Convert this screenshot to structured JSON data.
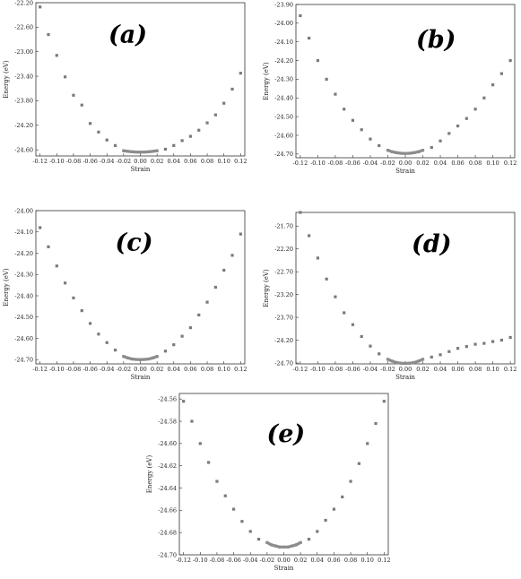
{
  "chart_data": [
    {
      "type": "scatter",
      "panel_label": "(a)",
      "xlabel": "Strain",
      "ylabel": "Energy (eV)",
      "xlim": [
        -0.125,
        0.125
      ],
      "ylim": [
        -24.7,
        -22.2
      ],
      "x_ticks": [
        -0.12,
        -0.1,
        -0.08,
        -0.06,
        -0.04,
        -0.02,
        0.0,
        0.02,
        0.04,
        0.06,
        0.08,
        0.1,
        0.12
      ],
      "x_tick_labels": [
        "-0.12",
        "-0.10",
        "-0.08",
        "-0.06",
        "-0.04",
        "-0.02",
        "0.00",
        "0.02",
        "0.04",
        "0.06",
        "0.08",
        "0.10",
        "0.12"
      ],
      "y_ticks": [
        -24.6,
        -24.2,
        -23.8,
        -23.4,
        -23.0,
        -22.6,
        -22.2
      ],
      "y_tick_labels": [
        "-24.60",
        "-24.20",
        "-23.80",
        "-23.40",
        "-23.00",
        "-22.60",
        "-22.20"
      ],
      "series": [
        {
          "x": [
            -0.12,
            -0.11,
            -0.1,
            -0.09,
            -0.08,
            -0.07,
            -0.06,
            -0.05,
            -0.04,
            -0.03,
            0.03,
            0.04,
            0.05,
            0.06,
            0.07,
            0.08,
            0.09,
            0.1,
            0.11,
            0.12
          ],
          "y": [
            -22.27,
            -22.72,
            -23.06,
            -23.41,
            -23.71,
            -23.87,
            -24.17,
            -24.31,
            -24.44,
            -24.53,
            -24.59,
            -24.53,
            -24.45,
            -24.38,
            -24.28,
            -24.16,
            -24.03,
            -23.84,
            -23.61,
            -23.35
          ]
        },
        {
          "x": [
            -0.02,
            -0.015,
            -0.01,
            -0.005,
            0.0,
            0.005,
            0.01,
            0.015,
            0.02
          ],
          "y": [
            -24.615,
            -24.625,
            -24.632,
            -24.636,
            -24.638,
            -24.636,
            -24.632,
            -24.625,
            -24.615
          ]
        }
      ]
    },
    {
      "type": "scatter",
      "panel_label": "(b)",
      "xlabel": "Strain",
      "ylabel": "Energy (eV)",
      "xlim": [
        -0.125,
        0.125
      ],
      "ylim": [
        -24.72,
        -23.9
      ],
      "x_ticks": [
        -0.12,
        -0.1,
        -0.08,
        -0.06,
        -0.04,
        -0.02,
        0.0,
        0.02,
        0.04,
        0.06,
        0.08,
        0.1,
        0.12
      ],
      "x_tick_labels": [
        "-0.12",
        "-0.10",
        "-0.08",
        "-0.06",
        "-0.04",
        "-0.02",
        "0.00",
        "0.02",
        "0.04",
        "0.06",
        "0.08",
        "0.10",
        "0.12"
      ],
      "y_ticks": [
        -24.7,
        -24.6,
        -24.5,
        -24.4,
        -24.3,
        -24.2,
        -24.1,
        -24.0,
        -23.9
      ],
      "y_tick_labels": [
        "-24.70",
        "-24.60",
        "-24.50",
        "-24.40",
        "-24.30",
        "-24.20",
        "-24.10",
        "-24.00",
        "-23.90"
      ],
      "series": [
        {
          "x": [
            -0.12,
            -0.11,
            -0.1,
            -0.09,
            -0.08,
            -0.07,
            -0.06,
            -0.05,
            -0.04,
            -0.03,
            0.03,
            0.04,
            0.05,
            0.06,
            0.07,
            0.08,
            0.09,
            0.1,
            0.11,
            0.12
          ],
          "y": [
            -23.96,
            -24.08,
            -24.2,
            -24.3,
            -24.38,
            -24.46,
            -24.52,
            -24.57,
            -24.62,
            -24.655,
            -24.665,
            -24.63,
            -24.59,
            -24.55,
            -24.51,
            -24.46,
            -24.4,
            -24.33,
            -24.27,
            -24.2
          ]
        },
        {
          "x": [
            -0.02,
            -0.015,
            -0.01,
            -0.005,
            0.0,
            0.005,
            0.01,
            0.015,
            0.02
          ],
          "y": [
            -24.68,
            -24.688,
            -24.693,
            -24.696,
            -24.697,
            -24.696,
            -24.693,
            -24.688,
            -24.68
          ]
        }
      ]
    },
    {
      "type": "scatter",
      "panel_label": "(c)",
      "xlabel": "Strain",
      "ylabel": "Energy (eV)",
      "xlim": [
        -0.125,
        0.125
      ],
      "ylim": [
        -24.72,
        -24.0
      ],
      "x_ticks": [
        -0.12,
        -0.1,
        -0.08,
        -0.06,
        -0.04,
        -0.02,
        0.0,
        0.02,
        0.04,
        0.06,
        0.08,
        0.1,
        0.12
      ],
      "x_tick_labels": [
        "-0.12",
        "-0.10",
        "-0.08",
        "-0.06",
        "-0.04",
        "-0.02",
        "0.00",
        "0.02",
        "0.04",
        "0.06",
        "0.08",
        "0.10",
        "0.12"
      ],
      "y_ticks": [
        -24.7,
        -24.6,
        -24.5,
        -24.4,
        -24.3,
        -24.2,
        -24.1,
        -24.0
      ],
      "y_tick_labels": [
        "-24.70",
        "-24.60",
        "-24.50",
        "-24.40",
        "-24.30",
        "-24.20",
        "-24.10",
        "-24.00"
      ],
      "series": [
        {
          "x": [
            -0.12,
            -0.11,
            -0.1,
            -0.09,
            -0.08,
            -0.07,
            -0.06,
            -0.05,
            -0.04,
            -0.03,
            0.03,
            0.04,
            0.05,
            0.06,
            0.07,
            0.08,
            0.09,
            0.1,
            0.11,
            0.12
          ],
          "y": [
            -24.08,
            -24.17,
            -24.26,
            -24.34,
            -24.41,
            -24.47,
            -24.53,
            -24.58,
            -24.62,
            -24.655,
            -24.66,
            -24.63,
            -24.59,
            -24.55,
            -24.49,
            -24.43,
            -24.36,
            -24.28,
            -24.21,
            -24.11
          ]
        },
        {
          "x": [
            -0.02,
            -0.015,
            -0.01,
            -0.005,
            0.0,
            0.005,
            0.01,
            0.015,
            0.02
          ],
          "y": [
            -24.685,
            -24.692,
            -24.697,
            -24.699,
            -24.7,
            -24.699,
            -24.697,
            -24.692,
            -24.685
          ]
        }
      ]
    },
    {
      "type": "scatter",
      "panel_label": "(d)",
      "xlabel": "Strain",
      "ylabel": "Energy (eV)",
      "xlim": [
        -0.125,
        0.125
      ],
      "ylim": [
        -24.72,
        -21.4
      ],
      "x_ticks": [
        -0.12,
        -0.1,
        -0.08,
        -0.06,
        -0.04,
        -0.02,
        0.0,
        0.02,
        0.04,
        0.06,
        0.08,
        0.1,
        0.12
      ],
      "x_tick_labels": [
        "-0.12",
        "-0.10",
        "-0.08",
        "-0.06",
        "-0.04",
        "-0.02",
        "0.00",
        "0.02",
        "0.04",
        "0.06",
        "0.08",
        "0.10",
        "0.12"
      ],
      "y_ticks": [
        -24.7,
        -24.2,
        -23.7,
        -23.2,
        -22.7,
        -22.2,
        -21.7
      ],
      "y_tick_labels": [
        "-24.70",
        "-24.20",
        "-23.70",
        "-23.20",
        "-22.70",
        "-22.20",
        "-21.70"
      ],
      "series": [
        {
          "x": [
            -0.12,
            -0.11,
            -0.1,
            -0.09,
            -0.08,
            -0.07,
            -0.06,
            -0.05,
            -0.04,
            -0.03,
            0.03,
            0.04,
            0.05,
            0.06,
            0.07,
            0.08,
            0.09,
            0.1,
            0.11,
            0.12
          ],
          "y": [
            -21.4,
            -21.91,
            -22.4,
            -22.86,
            -23.25,
            -23.6,
            -23.86,
            -24.12,
            -24.33,
            -24.5,
            -24.57,
            -24.52,
            -24.45,
            -24.38,
            -24.34,
            -24.29,
            -24.27,
            -24.23,
            -24.2,
            -24.14
          ]
        },
        {
          "x": [
            -0.02,
            -0.015,
            -0.01,
            -0.005,
            0.0,
            0.005,
            0.01,
            0.015,
            0.02
          ],
          "y": [
            -24.62,
            -24.66,
            -24.69,
            -24.705,
            -24.71,
            -24.705,
            -24.69,
            -24.66,
            -24.62
          ]
        }
      ]
    },
    {
      "type": "scatter",
      "panel_label": "(e)",
      "xlabel": "Strain",
      "ylabel": "Energy (eV)",
      "xlim": [
        -0.125,
        0.125
      ],
      "ylim": [
        -24.7,
        -24.555
      ],
      "x_ticks": [
        -0.12,
        -0.1,
        -0.08,
        -0.06,
        -0.04,
        -0.02,
        0.0,
        0.02,
        0.04,
        0.06,
        0.08,
        0.1,
        0.12
      ],
      "x_tick_labels": [
        "-0.12",
        "-0.10",
        "-0.08",
        "-0.06",
        "-0.04",
        "-0.02",
        "0.00",
        "0.02",
        "0.04",
        "0.06",
        "0.08",
        "0.10",
        "0.12"
      ],
      "y_ticks": [
        -24.7,
        -24.68,
        -24.66,
        -24.64,
        -24.62,
        -24.6,
        -24.58,
        -24.56
      ],
      "y_tick_labels": [
        "-24.70",
        "-24.68",
        "-24.66",
        "-24.64",
        "-24.62",
        "-24.60",
        "-24.58",
        "-24.56"
      ],
      "series": [
        {
          "x": [
            -0.12,
            -0.11,
            -0.1,
            -0.09,
            -0.08,
            -0.07,
            -0.06,
            -0.05,
            -0.04,
            -0.03,
            0.03,
            0.04,
            0.05,
            0.06,
            0.07,
            0.08,
            0.09,
            0.1,
            0.11,
            0.12
          ],
          "y": [
            -24.562,
            -24.58,
            -24.6,
            -24.617,
            -24.634,
            -24.647,
            -24.659,
            -24.67,
            -24.679,
            -24.686,
            -24.686,
            -24.679,
            -24.669,
            -24.659,
            -24.648,
            -24.634,
            -24.618,
            -24.6,
            -24.582,
            -24.562
          ]
        },
        {
          "x": [
            -0.02,
            -0.015,
            -0.01,
            -0.005,
            0.0,
            0.005,
            0.01,
            0.015,
            0.02
          ],
          "y": [
            -24.689,
            -24.691,
            -24.692,
            -24.693,
            -24.693,
            -24.693,
            -24.692,
            -24.691,
            -24.689
          ]
        }
      ]
    }
  ]
}
